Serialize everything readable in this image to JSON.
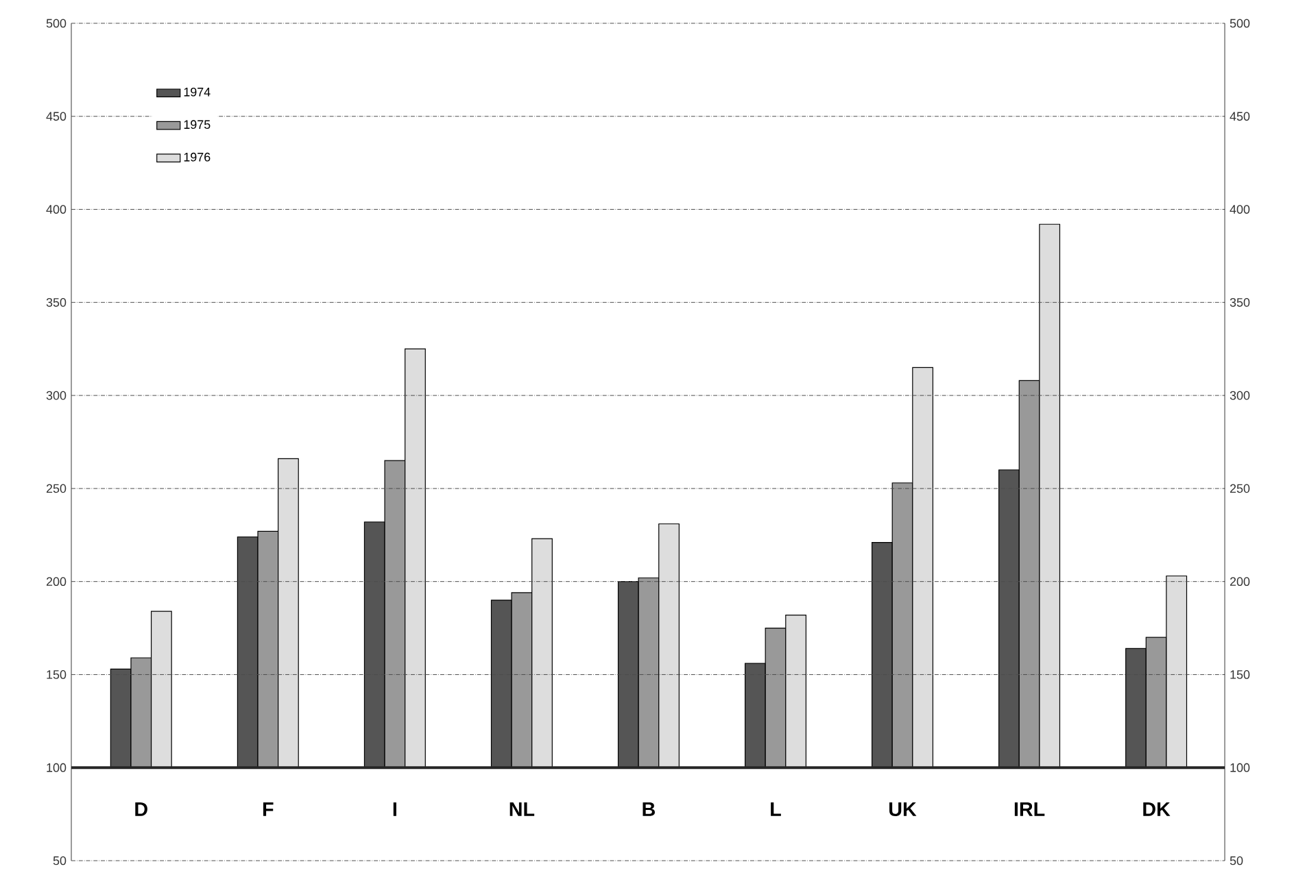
{
  "chart_data": {
    "type": "bar",
    "categories": [
      "D",
      "F",
      "I",
      "NL",
      "B",
      "L",
      "UK",
      "IRL",
      "DK"
    ],
    "series": [
      {
        "name": "1974",
        "color": "#555555",
        "base": [
          100,
          100,
          100,
          100,
          100,
          100,
          100,
          100,
          100
        ],
        "values": [
          53,
          124,
          132,
          90,
          100,
          56,
          121,
          160,
          64
        ]
      },
      {
        "name": "1975",
        "color": "#999999",
        "base": [
          100,
          100,
          100,
          100,
          100,
          100,
          100,
          100,
          100
        ],
        "values": [
          59,
          127,
          165,
          94,
          102,
          75,
          153,
          208,
          70
        ]
      },
      {
        "name": "1976",
        "color": "#dddddd",
        "base": [
          100,
          100,
          100,
          100,
          100,
          100,
          100,
          100,
          100
        ],
        "values": [
          84,
          166,
          225,
          123,
          131,
          82,
          215,
          292,
          103
        ]
      }
    ],
    "ylim": [
      50,
      500
    ],
    "yticks": [
      50,
      100,
      150,
      200,
      250,
      300,
      350,
      400,
      450,
      500
    ],
    "y2lim": [
      50,
      500
    ],
    "y2ticks": [
      50,
      100,
      150,
      200,
      250,
      300,
      350,
      400,
      450,
      500
    ],
    "grid": "y",
    "legend": "top left"
  }
}
